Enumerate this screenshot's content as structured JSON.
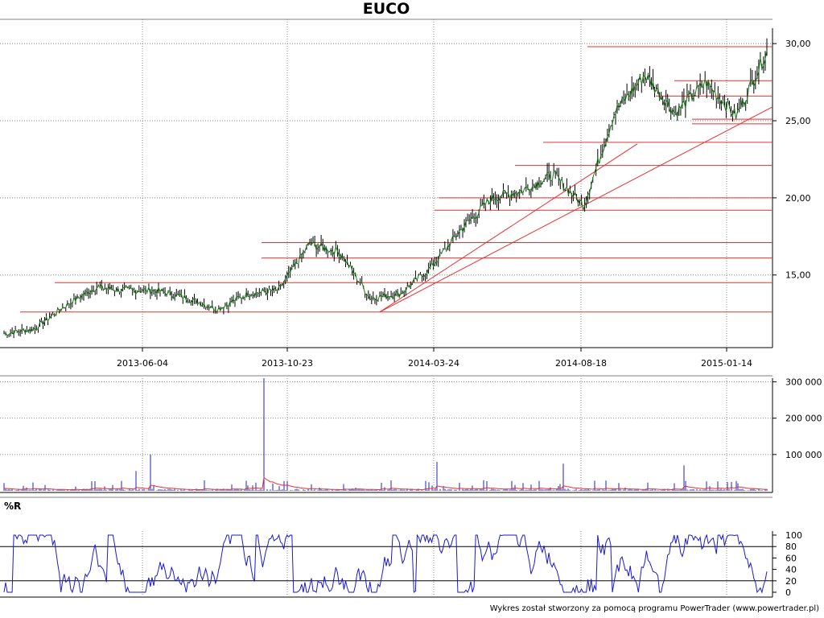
{
  "title": "EUCO",
  "footer": "Wykres został stworzony za pomocą programu PowerTrader (www.powertrader.pl)",
  "chart_data": [
    {
      "type": "line",
      "panel": "price",
      "title": "EUCO",
      "x_ticks": [
        "2013-06-04",
        "2013-10-23",
        "2014-03-24",
        "2014-08-18",
        "2015-01-14"
      ],
      "y_ticks": [
        "15,00",
        "20,00",
        "25,00",
        "30,00"
      ],
      "x": [
        "2013-01",
        "2013-02",
        "2013-03",
        "2013-04",
        "2013-05",
        "2013-06",
        "2013-07",
        "2013-08",
        "2013-09",
        "2013-10",
        "2013-11",
        "2013-12",
        "2014-01",
        "2014-02",
        "2014-03",
        "2014-04",
        "2014-05",
        "2014-06",
        "2014-07",
        "2014-08",
        "2014-09",
        "2014-10",
        "2014-11",
        "2014-12",
        "2015-01",
        "2015-02"
      ],
      "series": [
        {
          "values": [
            11.2,
            11.5,
            13.0,
            14.2,
            14.0,
            14.0,
            13.5,
            12.8,
            13.8,
            14.0,
            17.0,
            16.5,
            13.5,
            13.8,
            15.5,
            18.0,
            20.0,
            20.5,
            21.5,
            19.5,
            25.5,
            28.0,
            25.5,
            27.5,
            25.3,
            29.5
          ]
        }
      ],
      "ylim": [
        10.5,
        31
      ],
      "grid": true,
      "annotations": "horizontal support/resistance lines and trendlines drawn in red"
    },
    {
      "type": "bar",
      "panel": "volume",
      "y_ticks": [
        "100 000",
        "200 000",
        "300 000"
      ],
      "ylim": [
        0,
        310000
      ]
    },
    {
      "type": "line",
      "panel": "oscillator",
      "label": "%R",
      "y_ticks": [
        "0",
        "20",
        "40",
        "60",
        "80",
        "100"
      ],
      "ylim": [
        0,
        100
      ],
      "levels": [
        20,
        80
      ]
    }
  ],
  "colors": {
    "price": "#000000",
    "price_line": "#1a7a1a",
    "support": "#e83030",
    "volume": "#2020c0",
    "volume_ma": "#e83030",
    "oscillator": "#1a1ad0"
  }
}
